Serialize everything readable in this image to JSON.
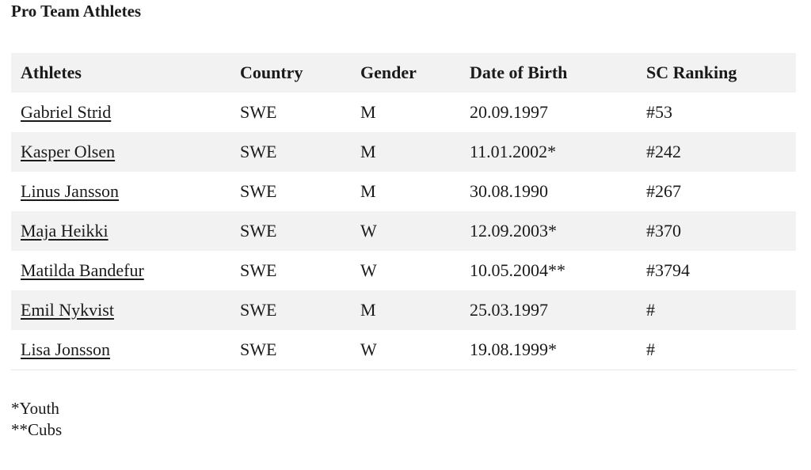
{
  "header": {
    "title": "Pro Team Athletes"
  },
  "table": {
    "columns": [
      "Athletes",
      "Country",
      "Gender",
      "Date of Birth",
      "SC Ranking"
    ],
    "rows": [
      [
        "Gabriel Strid",
        "SWE",
        "M",
        "20.09.1997",
        "#53"
      ],
      [
        "Kasper Olsen",
        "SWE",
        "M",
        "11.01.2002*",
        "#242"
      ],
      [
        "Linus Jansson",
        "SWE",
        "M",
        "30.08.1990",
        "#267"
      ],
      [
        "Maja Heikki",
        "SWE",
        "W",
        "12.09.2003*",
        "#370"
      ],
      [
        "Matilda Bandefur",
        "SWE",
        "W",
        "10.05.2004**",
        "#3794"
      ],
      [
        "Emil Nykvist",
        "SWE",
        "M",
        "25.03.1997",
        "#"
      ],
      [
        "Lisa Jonsson",
        "SWE",
        "W",
        "19.08.1999*",
        "#"
      ]
    ]
  },
  "footnotes": [
    "*Youth",
    "**Cubs"
  ]
}
